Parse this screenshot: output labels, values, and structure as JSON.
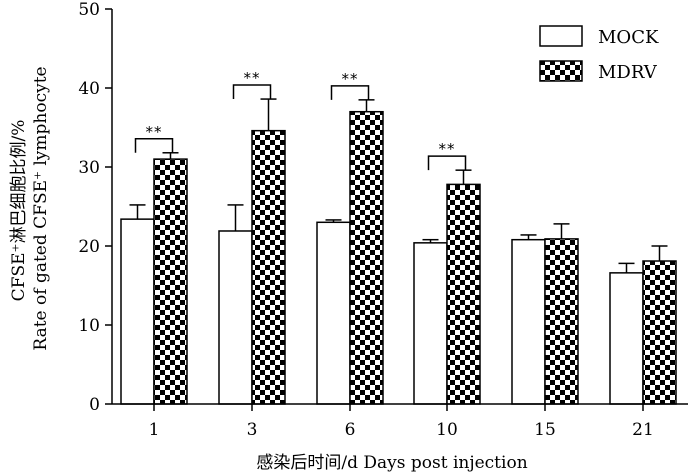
{
  "chart_data": {
    "type": "bar",
    "categories": [
      "1",
      "3",
      "6",
      "10",
      "15",
      "21"
    ],
    "series": [
      {
        "name": "MOCK",
        "values": [
          23.4,
          21.9,
          23.0,
          20.4,
          20.8,
          16.6
        ],
        "errors": [
          1.8,
          3.3,
          0.3,
          0.4,
          0.6,
          1.2
        ],
        "fill": "plain"
      },
      {
        "name": "MDRV",
        "values": [
          31.0,
          34.6,
          37.0,
          27.8,
          20.9,
          18.1
        ],
        "errors": [
          0.8,
          4.0,
          1.5,
          1.8,
          1.9,
          1.9
        ],
        "fill": "checkerboard"
      }
    ],
    "significance": [
      {
        "category": "1",
        "label": "**"
      },
      {
        "category": "3",
        "label": "**"
      },
      {
        "category": "6",
        "label": "**"
      },
      {
        "category": "10",
        "label": "**"
      }
    ],
    "ylim": [
      0,
      50
    ],
    "yticks": [
      0,
      10,
      20,
      30,
      40,
      50
    ],
    "xlabel": "感染后时间/d Days post injection",
    "ylabel_line1": "CFSE⁺淋巴细胞比例/%",
    "ylabel_line2": "Rate of gated CFSE⁺ lymphocyte",
    "legend_position": "top-right",
    "grid": false,
    "colors": {
      "axis": "#000000",
      "bar_plain": "#ffffff",
      "checker_dark": "#000000",
      "checker_light": "#ffffff"
    }
  }
}
